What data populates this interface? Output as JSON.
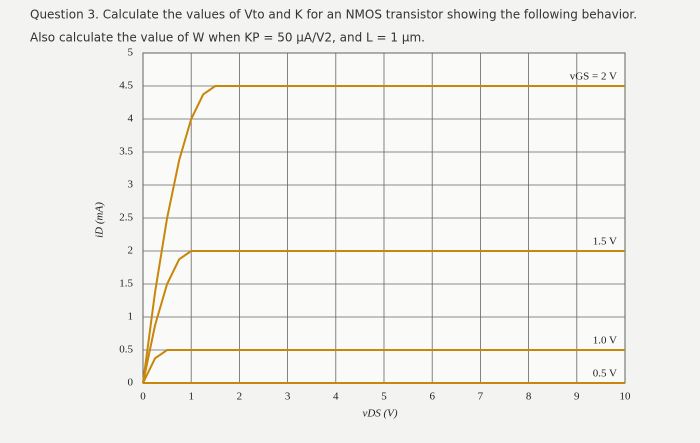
{
  "question": [
    "Question 3. Calculate the values of Vto and K for an NMOS transistor showing the following behavior.",
    "Also calculate the value of W when KP = 50 μA/V2, and L = 1 μm."
  ],
  "chart_data": {
    "type": "line",
    "x_label": "vDS (V)",
    "y_label": "iD (mA)",
    "x": [
      0,
      0.25,
      0.5,
      0.75,
      1,
      1.25,
      1.5,
      10
    ],
    "series": [
      {
        "name": "vGS = 2 V",
        "color": "#c8860a",
        "values": [
          0,
          1.375,
          2.5,
          3.375,
          4,
          4.375,
          4.5,
          4.5
        ]
      },
      {
        "name": "1.5 V",
        "color": "#c8860a",
        "values": [
          0,
          0.875,
          1.5,
          1.875,
          2,
          2,
          2,
          2
        ]
      },
      {
        "name": "1.0 V",
        "color": "#c8860a",
        "values": [
          0,
          0.375,
          0.5,
          0.5,
          0.5,
          0.5,
          0.5,
          0.5
        ]
      },
      {
        "name": "0.5 V",
        "color": "#c8860a",
        "values": [
          0,
          0,
          0,
          0,
          0,
          0,
          0,
          0
        ]
      }
    ],
    "xlim": [
      0,
      10
    ],
    "ylim": [
      0,
      5
    ],
    "xticks": [
      0,
      1,
      2,
      3,
      4,
      5,
      6,
      7,
      8,
      9,
      10
    ],
    "yticks": [
      0,
      0.5,
      1,
      1.5,
      2,
      2.5,
      3,
      3.5,
      4,
      4.5,
      5
    ],
    "grid": true
  }
}
